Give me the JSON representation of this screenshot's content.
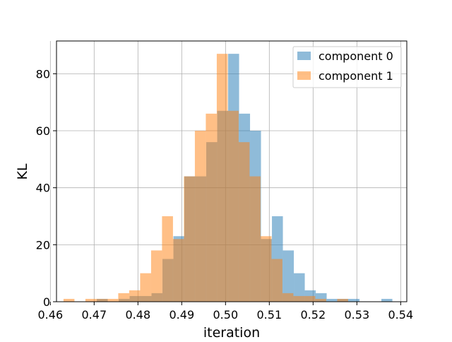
{
  "chart_data": {
    "type": "histogram",
    "title": "",
    "xlabel": "iteration",
    "ylabel": "KL",
    "xlim": [
      0.4614,
      0.5414
    ],
    "ylim": [
      0,
      91.5
    ],
    "xticks": [
      0.46,
      0.47,
      0.48,
      0.49,
      0.5,
      0.51,
      0.52,
      0.53,
      0.54
    ],
    "xtick_labels": [
      "0.46",
      "0.47",
      "0.48",
      "0.49",
      "0.50",
      "0.51",
      "0.52",
      "0.53",
      "0.54"
    ],
    "yticks": [
      0,
      20,
      40,
      60,
      80
    ],
    "ytick_labels": [
      "0",
      "20",
      "40",
      "60",
      "80"
    ],
    "grid": true,
    "legend_position": "top-right",
    "series": [
      {
        "name": "component 0",
        "color": "#1f77b4",
        "alpha": 0.5,
        "bins": [
          {
            "x0": 0.4706,
            "x1": 0.4731,
            "count": 1
          },
          {
            "x0": 0.4731,
            "x1": 0.4756,
            "count": 0
          },
          {
            "x0": 0.4756,
            "x1": 0.4781,
            "count": 1
          },
          {
            "x0": 0.4781,
            "x1": 0.4806,
            "count": 2
          },
          {
            "x0": 0.4806,
            "x1": 0.4831,
            "count": 2
          },
          {
            "x0": 0.4831,
            "x1": 0.4856,
            "count": 3
          },
          {
            "x0": 0.4856,
            "x1": 0.4881,
            "count": 15
          },
          {
            "x0": 0.4881,
            "x1": 0.4906,
            "count": 23
          },
          {
            "x0": 0.4906,
            "x1": 0.4931,
            "count": 44
          },
          {
            "x0": 0.4931,
            "x1": 0.4956,
            "count": 44
          },
          {
            "x0": 0.4956,
            "x1": 0.4981,
            "count": 56
          },
          {
            "x0": 0.4981,
            "x1": 0.5006,
            "count": 67
          },
          {
            "x0": 0.5006,
            "x1": 0.5031,
            "count": 87
          },
          {
            "x0": 0.5031,
            "x1": 0.5056,
            "count": 66
          },
          {
            "x0": 0.5056,
            "x1": 0.5081,
            "count": 60
          },
          {
            "x0": 0.5081,
            "x1": 0.5106,
            "count": 22
          },
          {
            "x0": 0.5106,
            "x1": 0.5131,
            "count": 30
          },
          {
            "x0": 0.5131,
            "x1": 0.5156,
            "count": 18
          },
          {
            "x0": 0.5156,
            "x1": 0.5181,
            "count": 10
          },
          {
            "x0": 0.5181,
            "x1": 0.5206,
            "count": 4
          },
          {
            "x0": 0.5206,
            "x1": 0.5231,
            "count": 3
          },
          {
            "x0": 0.5231,
            "x1": 0.5256,
            "count": 1
          },
          {
            "x0": 0.5256,
            "x1": 0.5281,
            "count": 1
          },
          {
            "x0": 0.5281,
            "x1": 0.5306,
            "count": 1
          },
          {
            "x0": 0.5306,
            "x1": 0.5331,
            "count": 0
          },
          {
            "x0": 0.5331,
            "x1": 0.5356,
            "count": 0
          },
          {
            "x0": 0.5356,
            "x1": 0.5381,
            "count": 1
          }
        ]
      },
      {
        "name": "component 1",
        "color": "#ff7f0e",
        "alpha": 0.5,
        "bins": [
          {
            "x0": 0.463,
            "x1": 0.4655,
            "count": 1
          },
          {
            "x0": 0.4655,
            "x1": 0.468,
            "count": 0
          },
          {
            "x0": 0.468,
            "x1": 0.4705,
            "count": 1
          },
          {
            "x0": 0.4705,
            "x1": 0.473,
            "count": 1
          },
          {
            "x0": 0.473,
            "x1": 0.4755,
            "count": 1
          },
          {
            "x0": 0.4755,
            "x1": 0.478,
            "count": 3
          },
          {
            "x0": 0.478,
            "x1": 0.4805,
            "count": 4
          },
          {
            "x0": 0.4805,
            "x1": 0.483,
            "count": 10
          },
          {
            "x0": 0.483,
            "x1": 0.4855,
            "count": 18
          },
          {
            "x0": 0.4855,
            "x1": 0.488,
            "count": 30
          },
          {
            "x0": 0.488,
            "x1": 0.4905,
            "count": 22
          },
          {
            "x0": 0.4905,
            "x1": 0.493,
            "count": 44
          },
          {
            "x0": 0.493,
            "x1": 0.4955,
            "count": 60
          },
          {
            "x0": 0.4955,
            "x1": 0.498,
            "count": 66
          },
          {
            "x0": 0.498,
            "x1": 0.5005,
            "count": 87
          },
          {
            "x0": 0.5005,
            "x1": 0.503,
            "count": 67
          },
          {
            "x0": 0.503,
            "x1": 0.5055,
            "count": 56
          },
          {
            "x0": 0.5055,
            "x1": 0.508,
            "count": 44
          },
          {
            "x0": 0.508,
            "x1": 0.5105,
            "count": 23
          },
          {
            "x0": 0.5105,
            "x1": 0.513,
            "count": 15
          },
          {
            "x0": 0.513,
            "x1": 0.5155,
            "count": 3
          },
          {
            "x0": 0.5155,
            "x1": 0.518,
            "count": 2
          },
          {
            "x0": 0.518,
            "x1": 0.5205,
            "count": 2
          },
          {
            "x0": 0.5205,
            "x1": 0.523,
            "count": 1
          },
          {
            "x0": 0.523,
            "x1": 0.5255,
            "count": 0
          },
          {
            "x0": 0.5255,
            "x1": 0.528,
            "count": 1
          }
        ]
      }
    ]
  }
}
